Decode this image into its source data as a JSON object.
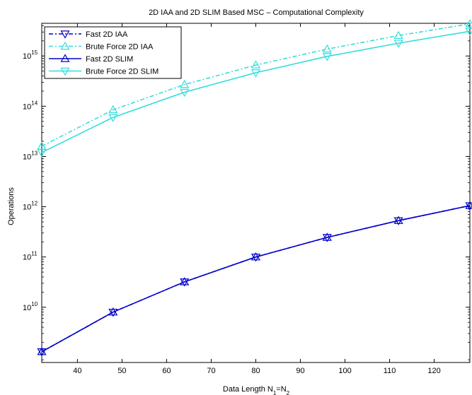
{
  "chart_data": {
    "type": "line",
    "title": "2D IAA and 2D SLIM Based MSC – Computational Complexity",
    "xlabel": {
      "base": "Data Length N",
      "sub1": "1",
      "eq": "=N",
      "sub2": "2"
    },
    "ylabel": "Operations",
    "xlim": [
      32,
      128
    ],
    "ylim_log10": [
      8.9,
      15.65
    ],
    "yscale": "log",
    "legend_position": "top-left",
    "x_ticks": [
      40,
      50,
      60,
      70,
      80,
      90,
      100,
      110,
      120
    ],
    "y_ticks": [
      {
        "exp": 10,
        "base": "10",
        "sup": "10"
      },
      {
        "exp": 11,
        "base": "10",
        "sup": "11"
      },
      {
        "exp": 12,
        "base": "10",
        "sup": "12"
      },
      {
        "exp": 13,
        "base": "10",
        "sup": "13"
      },
      {
        "exp": 14,
        "base": "10",
        "sup": "14"
      },
      {
        "exp": 15,
        "base": "10",
        "sup": "15"
      }
    ],
    "x": [
      32,
      48,
      64,
      80,
      96,
      112,
      128
    ],
    "series": [
      {
        "name": "Fast 2D IAA",
        "color": "#0000cc",
        "dash": "6,3,2,3",
        "marker": "triangle-down",
        "values": [
          1300000000.0,
          8000000000.0,
          32000000000.0,
          100000000000.0,
          245000000000.0,
          530000000000.0,
          1050000000000.0
        ]
      },
      {
        "name": "Brute Force 2D IAA",
        "color": "#33dddd",
        "dash": "6,3,2,3",
        "marker": "triangle-up",
        "values": [
          16000000000000.0,
          85000000000000.0,
          270000000000000.0,
          660000000000000.0,
          1370000000000000.0,
          2550000000000000.0,
          4350000000000000.0
        ]
      },
      {
        "name": "Fast 2D SLIM",
        "color": "#0000cc",
        "dash": "",
        "marker": "triangle-up",
        "values": [
          1300000000.0,
          8000000000.0,
          32000000000.0,
          100000000000.0,
          245000000000.0,
          530000000000.0,
          1050000000000.0
        ]
      },
      {
        "name": "Brute Force 2D SLIM",
        "color": "#33dddd",
        "dash": "",
        "marker": "triangle-down",
        "values": [
          12000000000000.0,
          60000000000000.0,
          190000000000000.0,
          465000000000000.0,
          980000000000000.0,
          1800000000000000.0,
          3100000000000000.0
        ]
      }
    ]
  }
}
